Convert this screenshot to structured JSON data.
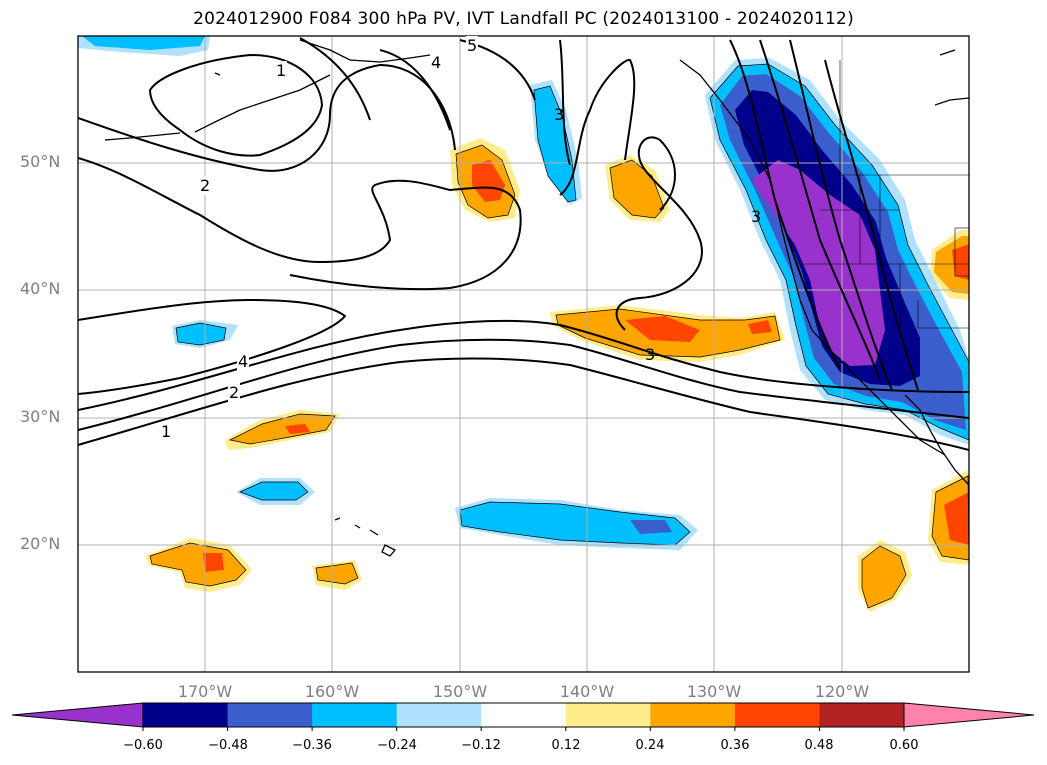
{
  "title": "2024012900 F084 300 hPa PV, IVT Landfall PC (2024013100 - 2024020112)",
  "map": {
    "lat_labels": [
      "50°N",
      "40°N",
      "30°N",
      "20°N"
    ],
    "lon_labels": [
      "170°W",
      "160°W",
      "150°W",
      "140°W",
      "130°W",
      "120°W"
    ],
    "extent": {
      "lon_min": -180,
      "lon_max": -110,
      "lat_min": 10,
      "lat_max": 60
    },
    "gridlines": true,
    "pv_contour_labels": [
      "1",
      "2",
      "4",
      "2",
      "1",
      "3",
      "5",
      "4",
      "3",
      "3"
    ]
  },
  "colorbar": {
    "tick_labels": [
      "−0.60",
      "−0.48",
      "−0.36",
      "−0.24",
      "−0.12",
      "0.12",
      "0.24",
      "0.36",
      "0.48",
      "0.60"
    ],
    "colors": [
      "#9932cc",
      "#00008b",
      "#3a5fcd",
      "#00bfff",
      "#b0e2ff",
      "#ffffff",
      "#ffec8b",
      "#ffa500",
      "#ff4500",
      "#b22222",
      "#ff82ab"
    ],
    "extend": "both"
  }
}
